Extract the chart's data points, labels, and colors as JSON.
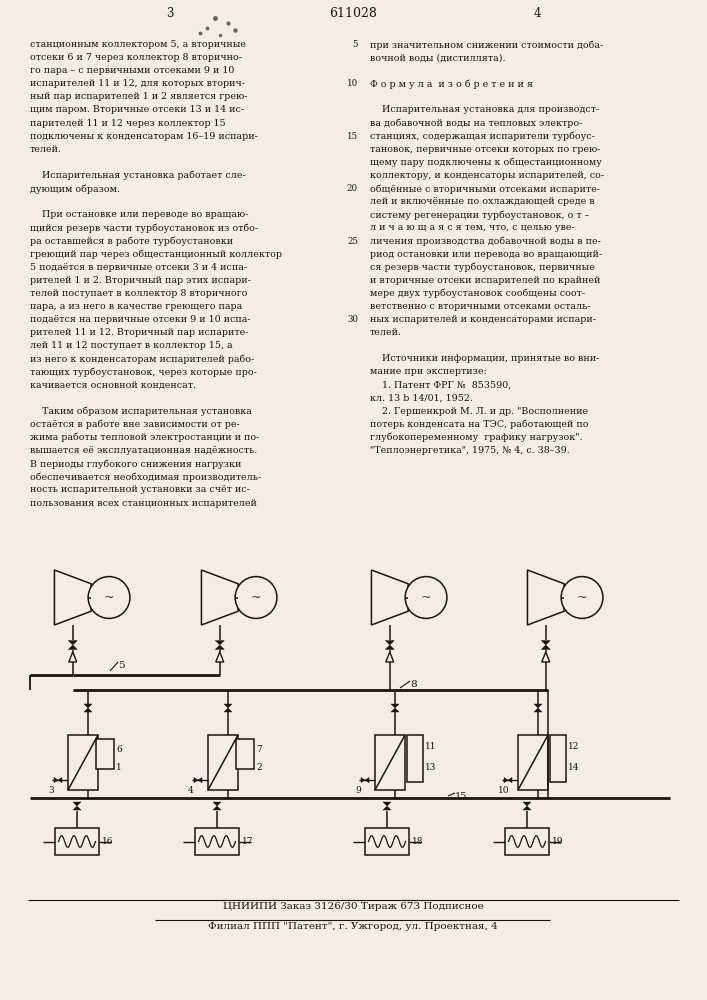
{
  "patent_number": "611028",
  "page_left_num": "3",
  "page_right_num": "4",
  "bg_color": "#f2ede6",
  "ink_color": "#1a1510",
  "font_size_body": 6.8,
  "footer_text1": "ЦНИИПИ Заказ 3126/30 Тираж 673 Подписное",
  "footer_text2": "Филиал ППП \"Патент\", г. Ужгород, ул. Проектная, 4",
  "left_col_lines": [
    "станционным коллектором 5, а вторичные",
    "отсеки 6 и 7 через коллектор 8 вторично-",
    "го пара – с первичными отсеками 9 и 10",
    "испарителей 11 и 12, для которых вторич-",
    "ный пар испарителей 1 и 2 является грею-",
    "щим паром. Вторичные отсеки 13 и 14 ис-",
    "парителей 11 и 12 через коллектор 15",
    "подключены к конденсаторам 16–19 испари-",
    "телей.",
    "",
    "    Испарительная установка работает сле-",
    "дующим образом.",
    "",
    "    При остановке или переводе во вращаю-",
    "щийся резерв части турбоустановок из отбо-",
    "ра оставшейся в работе турбоустановки",
    "греющий пар через общестанционный коллектор",
    "5 подаётся в первичные отсеки 3 и 4 испа-",
    "рителей 1 и 2. Вторичный пар этих испари-",
    "телей поступает в коллектор 8 вторичного",
    "пара, а из него в качестве греющего пара",
    "подаётся на первичные отсеки 9 и 10 испа-",
    "рителей 11 и 12. Вторичный пар испарите-",
    "лей 11 и 12 поступает в коллектор 15, а",
    "из него к конденсаторам испарителей рабо-",
    "тающих турбоустановок, через которые про-",
    "качивается основной конденсат.",
    "",
    "    Таким образом испарительная установка",
    "остаётся в работе вне зависимости от ре-",
    "жима работы тепловой электростанции и по-",
    "вышается её эксплуатационная надёжность.",
    "В периоды глубокого снижения нагрузки",
    "обеспечивается необходимая производитель-",
    "ность испарительной установки за счёт ис-",
    "пользования всех станционных испарителей"
  ],
  "right_col_lines": [
    "при значительном снижении стоимости доба-",
    "вочной воды (дистиллята).",
    "",
    "Ф о р м у л а  и з о б р е т е н и я",
    "",
    "    Испарительная установка для производст-",
    "ва добавочной воды на тепловых электро-",
    "станциях, содержащая испарители турбоус-",
    "тановок, первичные отсеки которых по грею-",
    "щему пару подключены к общестанционному",
    "коллектору, и конденсаторы испарителей, со-",
    "общённые с вторичными отсеками испарите-",
    "лей и включённые по охлаждающей среде в",
    "систему регенерации турбоустановок, о т –",
    "л и ч а ю щ а я с я тем, что, с целью уве-",
    "личения производства добавочной воды в пе-",
    "риод остановки или перевода во вращающий-",
    "ся резерв части турбоустановок, первичные",
    "и вторичные отсеки испарителей по крайней",
    "мере двух турбоустановок сообщены соот-",
    "ветственно с вторичными отсеками осталь-",
    "ных испарителей и конденсаторами испари-",
    "телей.",
    "",
    "    Источники информации, принятые во вни-",
    "мание при экспертизе:",
    "    1. Патент ФРГ №  853590,",
    "кл. 13 b 14/01, 1952.",
    "    2. Гершенкрой М. Л. и др. \"Восполнение",
    "потерь конденсата на ТЭС, работающей по",
    "глубокопеременному  графику нагрузок\".",
    "\"Теплоэнергетика\", 1975, № 4, с. 38–39."
  ],
  "line_num_indices": [
    0,
    3,
    7,
    11,
    15,
    21
  ],
  "line_nums": [
    "5",
    "10",
    "15",
    "20",
    "25",
    "30"
  ]
}
